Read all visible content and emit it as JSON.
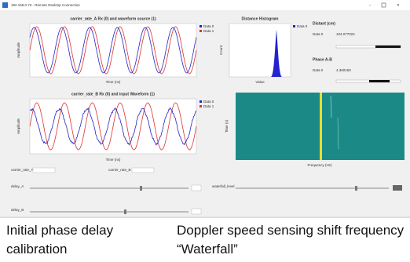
{
  "window": {
    "title": "192.168.0.73 - Remote Desktop Connection"
  },
  "plots": [
    {
      "title": "carrier_rate_A Rx (0) and waveform source (1)",
      "x_label": "Time (ns)",
      "y_label": "Amplitude",
      "legend": [
        "Data 0",
        "Data 1"
      ]
    },
    {
      "title": "Distance Histogram",
      "x_label": "Value",
      "y_label": "Count",
      "legend": [
        "Data 0"
      ]
    },
    {
      "title": "carrier_rate_B Rx (0) and input Waveform (1)",
      "x_label": "Time (ns)",
      "y_label": "Amplitude",
      "legend": [
        "Data 0",
        "Data 1"
      ]
    },
    {
      "x_label": "Frequency (Hz)",
      "y_label": "Time (s)"
    }
  ],
  "indicators": [
    {
      "label": "Distant (cm)",
      "name": "Data 0",
      "value": "104.077024"
    },
    {
      "label": "Phase A-B",
      "name": "Data 0",
      "value": "4.360150"
    }
  ],
  "controls": {
    "carrier_a": "carrier_rate_A",
    "carrier_b": "carrier_rate_B",
    "delay_a": "delay_A",
    "delay_b": "delay_B",
    "waterfall": "waterfall_level"
  },
  "captions": [
    "Initial phase delay calibration",
    "Doppler speed sensing shift frequency “Waterfall”"
  ]
}
